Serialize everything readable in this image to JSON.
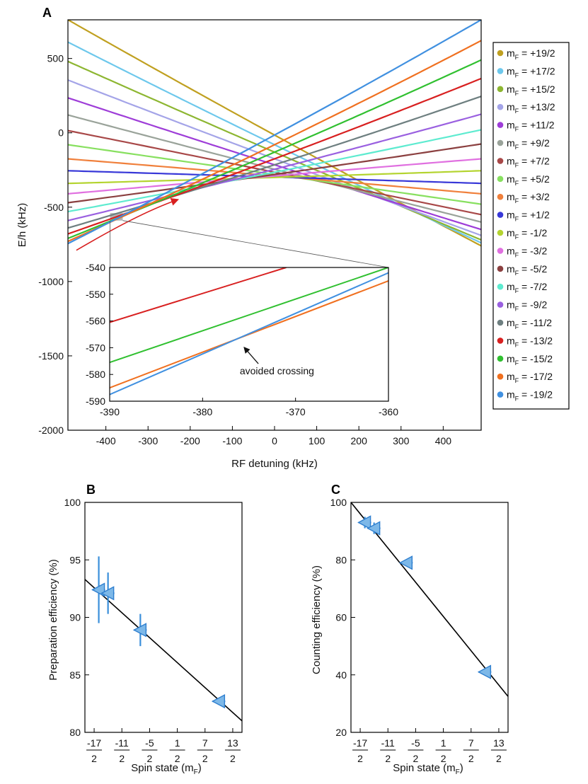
{
  "chart_data": [
    {
      "panel": "A",
      "type": "line",
      "xlabel": "RF detuning (kHz)",
      "ylabel": "E/h (kHz)",
      "xlim": [
        -490,
        490
      ],
      "ylim": [
        -2000,
        760
      ],
      "xticks": [
        -400,
        -300,
        -200,
        -100,
        0,
        100,
        200,
        300,
        400
      ],
      "xtick_labels": [
        "-400",
        "-300",
        "-200",
        "-100",
        "0",
        "100",
        "200",
        "300",
        "400"
      ],
      "yticks": [
        500,
        0,
        -500,
        -1000,
        -1500,
        -2000
      ],
      "ytick_labels": [
        "500",
        "0",
        "-500",
        "-1000",
        "-1500",
        "-2000"
      ],
      "series": [
        {
          "name": "m_F = +19/2",
          "label_prefix": "m",
          "label_sub": "F",
          "label_value": " = +19/2",
          "color": "#C0A020",
          "x": [
            -490,
            0,
            490
          ],
          "y": [
            760,
            -15,
            -760
          ]
        },
        {
          "name": "m_F = +17/2",
          "label_prefix": "m",
          "label_sub": "F",
          "label_value": " = +17/2",
          "color": "#6DC8EC",
          "x": [
            -490,
            0,
            490
          ],
          "y": [
            610,
            -80,
            -740
          ]
        },
        {
          "name": "m_F = +15/2",
          "label_prefix": "m",
          "label_sub": "F",
          "label_value": " = +15/2",
          "color": "#8DB631",
          "x": [
            -490,
            0,
            490
          ],
          "y": [
            480,
            -130,
            -720
          ]
        },
        {
          "name": "m_F = +13/2",
          "label_prefix": "m",
          "label_sub": "F",
          "label_value": " = +13/2",
          "color": "#A4A4E8",
          "x": [
            -490,
            0,
            490
          ],
          "y": [
            355,
            -175,
            -690
          ]
        },
        {
          "name": "m_F = +11/2",
          "label_prefix": "m",
          "label_sub": "F",
          "label_value": " = +11/2",
          "color": "#9E3DD8",
          "x": [
            -490,
            0,
            490
          ],
          "y": [
            235,
            -215,
            -650
          ]
        },
        {
          "name": "m_F = +9/2",
          "label_prefix": "m",
          "label_sub": "F",
          "label_value": " = +9/2",
          "color": "#9AA39A",
          "x": [
            -490,
            0,
            490
          ],
          "y": [
            120,
            -245,
            -600
          ]
        },
        {
          "name": "m_F = +7/2",
          "label_prefix": "m",
          "label_sub": "F",
          "label_value": " = +7/2",
          "color": "#A84848",
          "x": [
            -490,
            0,
            490
          ],
          "y": [
            15,
            -265,
            -550
          ]
        },
        {
          "name": "m_F = +5/2",
          "label_prefix": "m",
          "label_sub": "F",
          "label_value": " = +5/2",
          "color": "#88E060",
          "x": [
            -490,
            0,
            490
          ],
          "y": [
            -80,
            -280,
            -480
          ]
        },
        {
          "name": "m_F = +3/2",
          "label_prefix": "m",
          "label_sub": "F",
          "label_value": " = +3/2",
          "color": "#F0803C",
          "x": [
            -490,
            0,
            490
          ],
          "y": [
            -175,
            -290,
            -410
          ]
        },
        {
          "name": "m_F = +1/2",
          "label_prefix": "m",
          "label_sub": "F",
          "label_value": " = +1/2",
          "color": "#3838D8",
          "x": [
            -490,
            0,
            490
          ],
          "y": [
            -255,
            -297,
            -340
          ]
        },
        {
          "name": "m_F = -1/2",
          "label_prefix": "m",
          "label_sub": "F",
          "label_value": " = -1/2",
          "color": "#B4D430",
          "x": [
            -490,
            0,
            490
          ],
          "y": [
            -340,
            -300,
            -255
          ]
        },
        {
          "name": "m_F = -3/2",
          "label_prefix": "m",
          "label_sub": "F",
          "label_value": " = -3/2",
          "color": "#E070E0",
          "x": [
            -490,
            0,
            490
          ],
          "y": [
            -410,
            -290,
            -175
          ]
        },
        {
          "name": "m_F = -5/2",
          "label_prefix": "m",
          "label_sub": "F",
          "label_value": " = -5/2",
          "color": "#8B4040",
          "x": [
            -490,
            0,
            490
          ],
          "y": [
            -470,
            -280,
            -75
          ]
        },
        {
          "name": "m_F = -7/2",
          "label_prefix": "m",
          "label_sub": "F",
          "label_value": " = -7/2",
          "color": "#5EEBD0",
          "x": [
            -490,
            0,
            490
          ],
          "y": [
            -530,
            -265,
            20
          ]
        },
        {
          "name": "m_F = -9/2",
          "label_prefix": "m",
          "label_sub": "F",
          "label_value": " = -9/2",
          "color": "#9A60E0",
          "x": [
            -490,
            0,
            490
          ],
          "y": [
            -590,
            -245,
            125
          ]
        },
        {
          "name": "m_F = -11/2",
          "label_prefix": "m",
          "label_sub": "F",
          "label_value": " = -11/2",
          "color": "#6E7F80",
          "x": [
            -490,
            0,
            490
          ],
          "y": [
            -640,
            -215,
            245
          ]
        },
        {
          "name": "m_F = -13/2",
          "label_prefix": "m",
          "label_sub": "F",
          "label_value": " = -13/2",
          "color": "#D82020",
          "x": [
            -490,
            0,
            490
          ],
          "y": [
            -680,
            -175,
            365
          ]
        },
        {
          "name": "m_F = -15/2",
          "label_prefix": "m",
          "label_sub": "F",
          "label_value": " = -15/2",
          "color": "#30C030",
          "x": [
            -490,
            0,
            490
          ],
          "y": [
            -710,
            -130,
            490
          ]
        },
        {
          "name": "m_F = -17/2",
          "label_prefix": "m",
          "label_sub": "F",
          "label_value": " = -17/2",
          "color": "#F07020",
          "x": [
            -490,
            0,
            490
          ],
          "y": [
            -730,
            -80,
            620
          ]
        },
        {
          "name": "m_F = -19/2",
          "label_prefix": "m",
          "label_sub": "F",
          "label_value": " = -19/2",
          "color": "#4090E0",
          "x": [
            -490,
            0,
            490
          ],
          "y": [
            -745,
            -15,
            760
          ]
        }
      ],
      "sweep_arrow": {
        "color": "#D82020",
        "x": [
          -470,
          -380,
          -300,
          -230
        ],
        "y": [
          -790,
          -640,
          -520,
          -450
        ]
      },
      "highlight_region": {
        "x": [
          -390,
          -360
        ],
        "y": [
          -590,
          -540
        ],
        "color": "#aaaaaa"
      },
      "inset": {
        "xlim": [
          -390,
          -360
        ],
        "ylim": [
          -590,
          -540
        ],
        "xticks": [
          -390,
          -380,
          -370,
          -360
        ],
        "xtick_labels": [
          "-390",
          "-380",
          "-370",
          "-360"
        ],
        "yticks": [
          -540,
          -550,
          -560,
          -570,
          -580,
          -590
        ],
        "ytick_labels": [
          "-540",
          "-550",
          "-560",
          "-570",
          "-580",
          "-590"
        ],
        "series": [
          {
            "color": "#D82020",
            "x": [
              -390,
              -371
            ],
            "y": [
              -560.5,
              -540
            ]
          },
          {
            "color": "#30C030",
            "x": [
              -390,
              -360
            ],
            "y": [
              -575.5,
              -540
            ]
          },
          {
            "color": "#F07020",
            "x": [
              -390,
              -360
            ],
            "y": [
              -585,
              -545
            ]
          },
          {
            "color": "#4090E0",
            "x": [
              -390,
              -360
            ],
            "y": [
              -587.5,
              -542
            ]
          }
        ],
        "annotation": {
          "text": "avoided crossing",
          "arrow_from": [
            -374,
            -576
          ],
          "arrow_to": [
            -375.5,
            -570
          ],
          "text_at": [
            -376,
            -580
          ]
        }
      }
    },
    {
      "panel": "B",
      "type": "scatter",
      "xlabel": "Spin state (m",
      "xlabel_sub": "F",
      "xlabel_end": ")",
      "ylabel": "Preparation efficiency (%)",
      "xlim": [
        -19,
        15
      ],
      "ylim": [
        80,
        100
      ],
      "yticks": [
        80,
        85,
        90,
        95,
        100
      ],
      "ytick_labels": [
        "80",
        "85",
        "90",
        "95",
        "100"
      ],
      "xticks": [
        -17,
        -11,
        -5,
        1,
        7,
        13
      ],
      "xtick_num": [
        "-17",
        "-11",
        "-5",
        "1",
        "7",
        "13"
      ],
      "xtick_den": "2",
      "points": {
        "x": [
          -16,
          -14,
          -7,
          10
        ],
        "y": [
          92.4,
          92.1,
          88.9,
          82.7
        ],
        "yerr": [
          2.9,
          1.8,
          1.4,
          0
        ]
      },
      "fit": {
        "x": [
          -19,
          15
        ],
        "y": [
          93.3,
          81.0
        ]
      },
      "marker_color": "#7DB8E8"
    },
    {
      "panel": "C",
      "type": "scatter",
      "xlabel": "Spin state (m",
      "xlabel_sub": "F",
      "xlabel_end": ")",
      "ylabel": "Counting efficiency (%)",
      "xlim": [
        -19,
        15
      ],
      "ylim": [
        20,
        100
      ],
      "yticks": [
        20,
        40,
        60,
        80,
        100
      ],
      "ytick_labels": [
        "20",
        "40",
        "60",
        "80",
        "100"
      ],
      "xticks": [
        -17,
        -11,
        -5,
        1,
        7,
        13
      ],
      "xtick_num": [
        "-17",
        "-11",
        "-5",
        "1",
        "7",
        "13"
      ],
      "xtick_den": "2",
      "points": {
        "x": [
          -16,
          -14,
          -7,
          10
        ],
        "y": [
          93,
          91,
          79,
          41
        ],
        "yerr": [
          2,
          2,
          0,
          0
        ]
      },
      "fit": {
        "x": [
          -19,
          15
        ],
        "y": [
          100,
          32.5
        ]
      },
      "marker_color": "#7DB8E8"
    }
  ]
}
